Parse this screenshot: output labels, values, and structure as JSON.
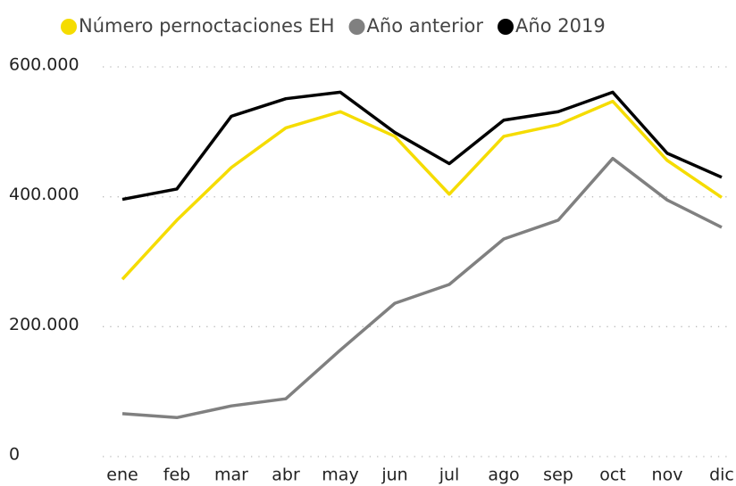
{
  "chart_data": {
    "type": "line",
    "categories": [
      "ene",
      "feb",
      "mar",
      "abr",
      "may",
      "jun",
      "jul",
      "ago",
      "sep",
      "oct",
      "nov",
      "dic"
    ],
    "series": [
      {
        "name": "Número pernoctaciones EH",
        "color": "#f5dc00",
        "values": [
          273000,
          364000,
          445000,
          506000,
          531000,
          493000,
          404000,
          493000,
          511000,
          547000,
          456000,
          399000
        ]
      },
      {
        "name": "Año anterior",
        "color": "#808080",
        "values": [
          66000,
          60000,
          78000,
          89000,
          164000,
          236000,
          265000,
          335000,
          364000,
          459000,
          395000,
          353000
        ]
      },
      {
        "name": "Año 2019",
        "color": "#000000",
        "values": [
          396000,
          412000,
          524000,
          551000,
          561000,
          499000,
          451000,
          518000,
          531000,
          561000,
          467000,
          430000
        ]
      }
    ],
    "ylim": [
      0,
      600000
    ],
    "yticks": [
      0,
      {
        "value": 200000,
        "label": "200.000"
      },
      {
        "value": 400000,
        "label": "400.000"
      },
      {
        "value": 600000,
        "label": "600.000"
      }
    ],
    "grid": true,
    "legend": "top"
  }
}
